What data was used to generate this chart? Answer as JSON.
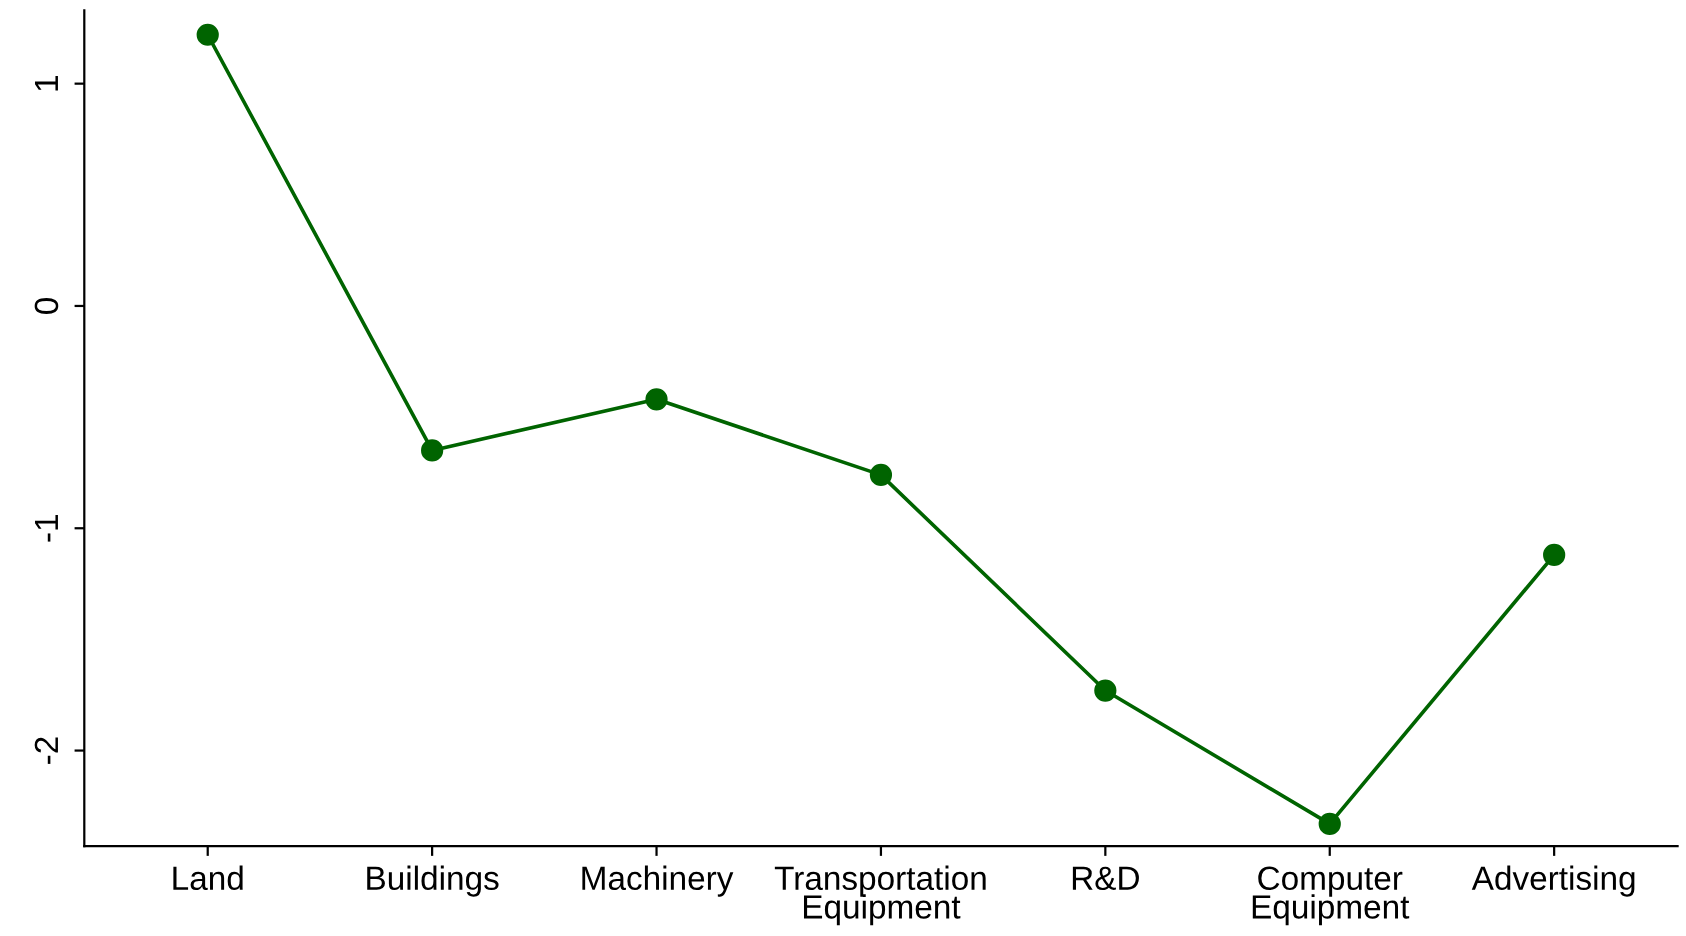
{
  "chart_data": {
    "type": "line",
    "categories": [
      "Land",
      "Buildings",
      "Machinery",
      "Transportation\nEquipment",
      "R&D",
      "Computer\nEquipment",
      "Advertising"
    ],
    "series": [
      {
        "color": "#006400",
        "values": [
          1.22,
          -0.65,
          -0.42,
          -0.76,
          -1.73,
          -2.33,
          -1.12
        ]
      }
    ],
    "ylim": [
      -2.43,
      1.33
    ],
    "yticks": [
      {
        "value": -2,
        "label": "-2"
      },
      {
        "value": -1,
        "label": "-1"
      },
      0,
      1
    ],
    "marker": "circle",
    "line_style": "solid",
    "grid": false,
    "legend": false
  }
}
